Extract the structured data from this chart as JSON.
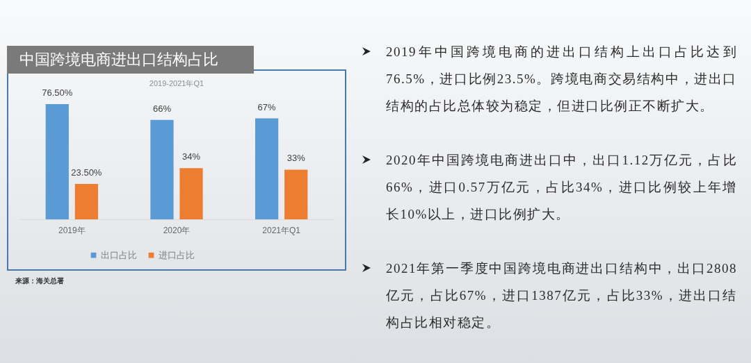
{
  "chart_data": {
    "type": "bar",
    "title": "中国跨境电商进出口结构占比",
    "subtitle": "2019-2021年Q1",
    "categories": [
      "2019年",
      "2020年",
      "2021年Q1"
    ],
    "series": [
      {
        "name": "出口占比",
        "color": "#5b9bd5",
        "values": [
          76.5,
          66,
          67
        ],
        "value_labels": [
          "76.50%",
          "66%",
          "67%"
        ]
      },
      {
        "name": "进口占比",
        "color": "#ed7d31",
        "values": [
          23.5,
          34,
          33
        ],
        "value_labels": [
          "23.50%",
          "34%",
          "33%"
        ]
      }
    ],
    "legend": "bottom",
    "tick_labels": "x",
    "annotations": [
      "2019年中国跨境电商的进出口结构上出口占比达到76.5%，进口比例23.5%。跨境电商交易结构中，进出口结构的占比总体较为稳定，但进口比例正不断扩大。",
      "2020年中国跨境电商进出口中，出口1.12万亿元，占比66%，进口0.57万亿元，占比34%，进口比例较上年增长10%以上，进口比例扩大。",
      "2021年第一季度中国跨境电商进出口结构中，出口2808亿元，占比67%，进口1387亿元，占比33%，进出口结构占比相对稳定。",
      "来源：海关总署"
    ]
  }
}
